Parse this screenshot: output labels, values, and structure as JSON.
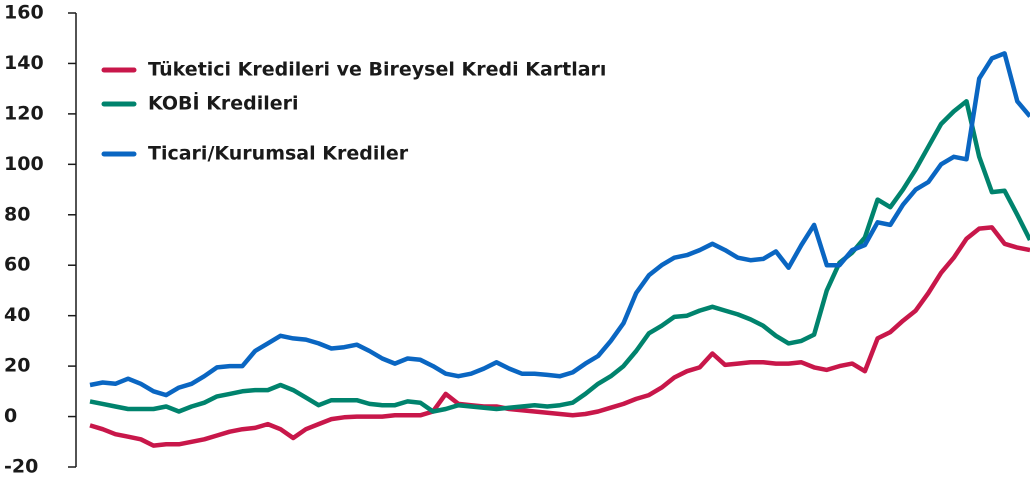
{
  "chart_data": {
    "type": "line",
    "ylim": [
      -20,
      160
    ],
    "yticks": [
      -20,
      0,
      20,
      40,
      60,
      80,
      100,
      120,
      140,
      160
    ],
    "legend": "upper left",
    "series": [
      {
        "name": "Tüketici Kredileri ve Bireysel Kredi Kartları",
        "color": "#c8174a",
        "values": [
          -3.5,
          -5,
          -7,
          -8,
          -9,
          -11.5,
          -11,
          -11,
          -10,
          -9,
          -7.5,
          -6,
          -5,
          -4.5,
          -3,
          -5,
          -8.5,
          -5,
          -3,
          -1,
          -0.3,
          0,
          0,
          0,
          0.5,
          0.5,
          0.5,
          2,
          9,
          5,
          4.5,
          4,
          4,
          3,
          2.5,
          2,
          1.5,
          1,
          0.5,
          1,
          2,
          3.5,
          5,
          7,
          8.5,
          11.5,
          15.5,
          18,
          19.5,
          25,
          20.5,
          21,
          21.5,
          21.5,
          21,
          21,
          21.5,
          19.5,
          18.5,
          20,
          21,
          18,
          31,
          33.5,
          38,
          42,
          49,
          57,
          63,
          70.5,
          74.5,
          75,
          68.5,
          67,
          66
        ]
      },
      {
        "name": "KOBİ Kredileri",
        "color": "#00836d",
        "values": [
          6,
          5,
          4,
          3,
          3,
          3,
          4,
          2,
          4,
          5.5,
          8,
          9,
          10,
          10.5,
          10.5,
          12.5,
          10.5,
          7.5,
          4.5,
          6.5,
          6.5,
          6.5,
          5,
          4.5,
          4.5,
          6,
          5.5,
          2,
          3,
          4.5,
          4,
          3.5,
          3,
          3.5,
          4,
          4.5,
          4,
          4.5,
          5.5,
          9,
          13,
          16,
          20,
          26,
          33,
          36,
          39.5,
          40,
          42,
          43.5,
          42,
          40.5,
          38.5,
          36,
          32,
          29,
          30,
          32.5,
          50,
          61,
          65,
          71,
          86,
          83,
          90,
          98,
          107,
          116,
          121,
          125,
          103,
          89,
          89.5,
          80,
          70
        ]
      },
      {
        "name": "Ticari/Kurumsal Krediler",
        "color": "#0a66c2",
        "values": [
          12.5,
          13.5,
          13,
          15,
          13,
          10,
          8.5,
          11.5,
          13,
          16,
          19.5,
          20,
          20,
          26,
          29,
          32,
          31,
          30.5,
          29,
          27,
          27.5,
          28.5,
          26,
          23,
          21,
          23,
          22.5,
          20,
          17,
          16,
          17,
          19,
          21.5,
          19,
          17,
          17,
          16.5,
          16,
          17.5,
          21,
          24,
          30,
          37,
          49,
          56,
          60,
          63,
          64,
          66,
          68.5,
          66,
          63,
          62,
          62.5,
          65.5,
          59,
          68,
          76,
          60,
          60,
          66,
          68,
          77,
          76,
          84,
          90,
          93,
          100,
          103,
          102,
          134,
          142,
          144,
          125,
          119
        ]
      }
    ]
  }
}
